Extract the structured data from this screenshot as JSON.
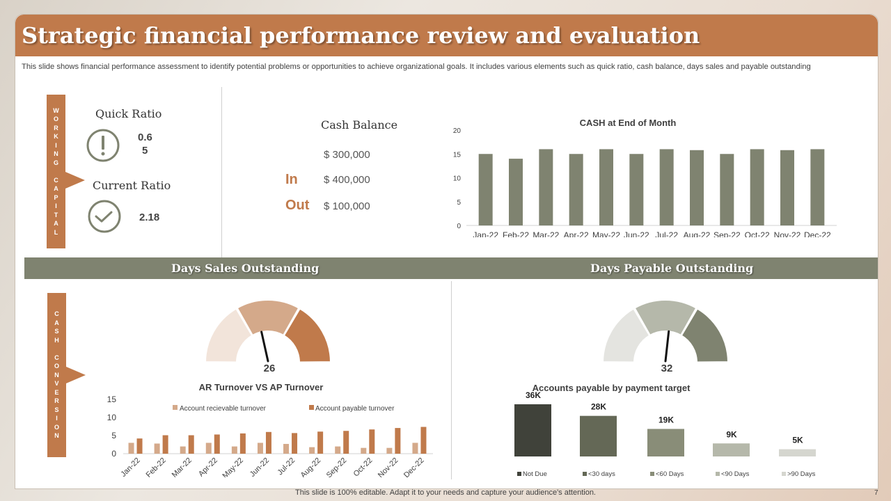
{
  "title": "Strategic financial performance review and evaluation",
  "subtitle": "This slide shows financial performance assessment to identify potential problems or opportunities to achieve organizational goals. It includes various elements such as quick ratio, cash balance, days sales and payable outstanding",
  "working_capital": {
    "label_letters": [
      "W",
      "O",
      "R",
      "K",
      "I",
      "N",
      "G",
      " ",
      "C",
      "A",
      "P",
      "I",
      "T",
      "A",
      "L"
    ],
    "quick_ratio": {
      "label": "Quick Ratio",
      "value_line1": "0.6",
      "value_line2": "5",
      "icon": "exclamation-icon"
    },
    "current_ratio": {
      "label": "Current Ratio",
      "value": "2.18",
      "icon": "checkmark-icon"
    }
  },
  "cash_balance": {
    "label": "Cash Balance",
    "total": "$ 300,000",
    "in_label": "In",
    "in_value": "$ 400,000",
    "out_label": "Out",
    "out_value": "$ 100,000"
  },
  "cash_conversion": {
    "label_letters": [
      "C",
      "A",
      "S",
      "H",
      " ",
      "C",
      "O",
      "N",
      "V",
      "E",
      "R",
      "S",
      "I",
      "O",
      "N"
    ]
  },
  "section_titles": {
    "dso": "Days Sales Outstanding",
    "dpo": "Days Payable Outstanding"
  },
  "colors": {
    "brown": "#c07a4b",
    "olive": "#7f8370",
    "tan": "#d4a98a",
    "light_tan": "#f2e4da"
  },
  "footer": "This slide is 100% editable. Adapt it to your needs and capture your audience's attention.",
  "page_number": "7",
  "chart_data": [
    {
      "id": "cash-end-of-month",
      "type": "bar",
      "title": "CASH at End of Month",
      "categories": [
        "Jan-22",
        "Feb-22",
        "Mar-22",
        "Apr-22",
        "May-22",
        "Jun-22",
        "Jul-22",
        "Aug-22",
        "Sep-22",
        "Oct-22",
        "Nov-22",
        "Dec-22"
      ],
      "values": [
        15,
        14,
        16,
        15,
        16,
        15,
        16,
        15.8,
        15,
        16,
        15.8,
        16
      ],
      "ylim": [
        0,
        20
      ],
      "yticks": [
        0,
        5,
        10,
        15,
        20
      ],
      "color": "#7f8370"
    },
    {
      "id": "dso-gauge",
      "type": "gauge",
      "value": 26,
      "value_label": "26",
      "segment_colors": [
        "#f2e4da",
        "#d4a98a",
        "#c07a4b"
      ]
    },
    {
      "id": "dpo-gauge",
      "type": "gauge",
      "value": 32,
      "value_label": "32",
      "segment_colors": [
        "#e4e4e0",
        "#b5b8aa",
        "#7f8370"
      ]
    },
    {
      "id": "ar-ap-turnover",
      "type": "bar",
      "title": "AR Turnover VS AP Turnover",
      "categories": [
        "Jan-22",
        "Feb-22",
        "Mar-22",
        "Apr-22",
        "May-22",
        "Jun-22",
        "Jul-22",
        "Aug-22",
        "Sep-22",
        "Oct-22",
        "Nov-22",
        "Dec-22"
      ],
      "series": [
        {
          "name": "Account recievable turnover",
          "values": [
            3,
            2.8,
            2,
            3,
            2,
            3,
            2.7,
            1.8,
            2,
            1.6,
            1.6,
            3
          ],
          "color": "#d4a98a"
        },
        {
          "name": "Account payable turnover",
          "values": [
            4.2,
            5.1,
            5.1,
            5.3,
            5.6,
            6,
            5.7,
            6.1,
            6.3,
            6.7,
            7.1,
            7.4
          ],
          "color": "#c07a4b"
        }
      ],
      "ylim": [
        0,
        15
      ],
      "yticks": [
        0,
        5,
        10,
        15
      ],
      "legend": "top"
    },
    {
      "id": "ap-by-payment-target",
      "type": "bar",
      "title": "Accounts  payable by payment target",
      "categories": [
        "Not Due",
        "<30 days",
        "<60 Days",
        "<90 Days",
        ">90 Days"
      ],
      "values": [
        36,
        28,
        19,
        9,
        5
      ],
      "value_labels": [
        "36K",
        "28K",
        "19K",
        "9K",
        "5K"
      ],
      "colors": [
        "#40423a",
        "#646856",
        "#898d78",
        "#b5b8aa",
        "#d5d6cf"
      ]
    }
  ]
}
